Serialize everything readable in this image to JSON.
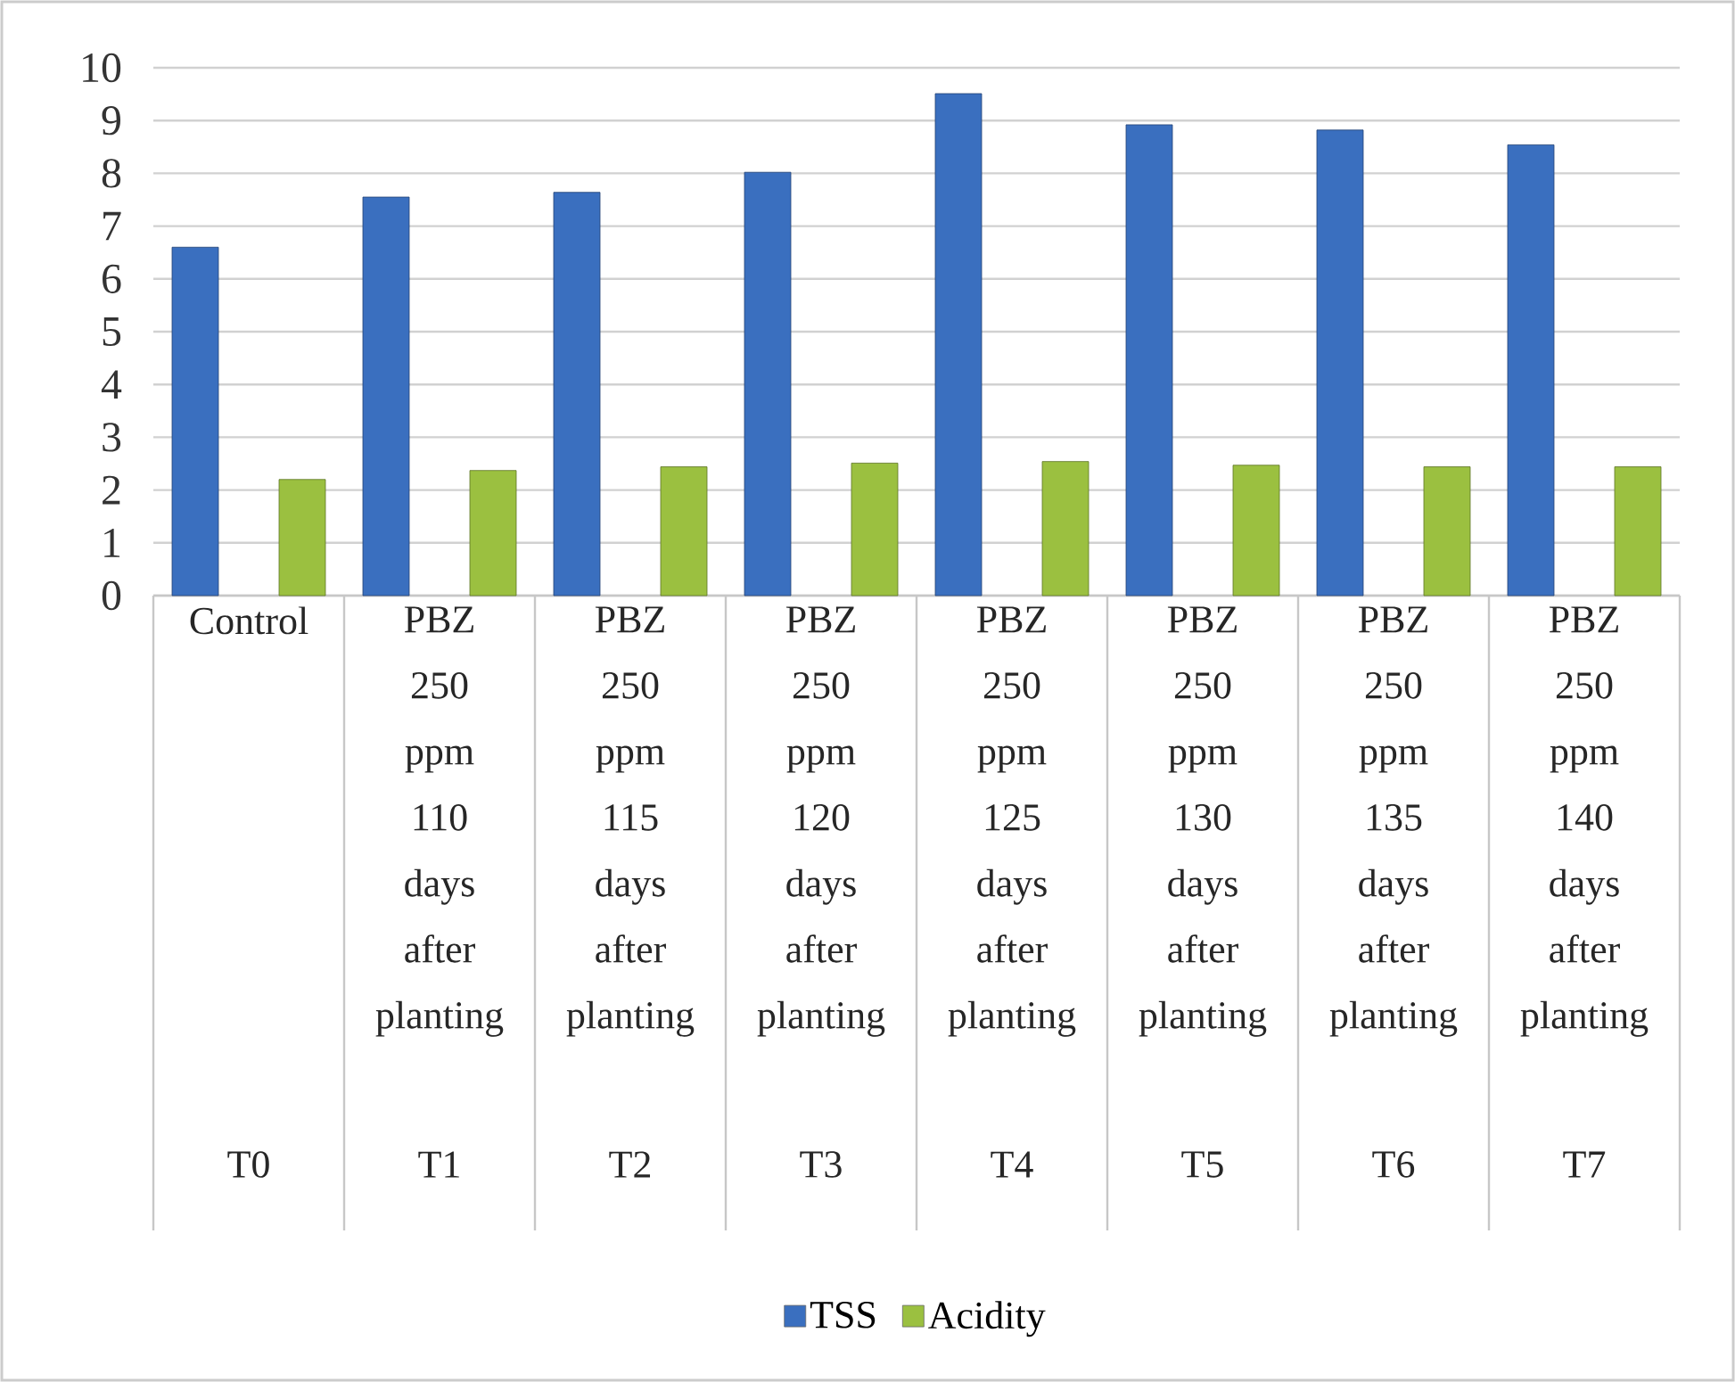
{
  "chart_data": {
    "type": "bar",
    "categories": [
      "Control",
      "PBZ 250 ppm 110 days after planting",
      "PBZ 250 ppm 115 days after planting",
      "PBZ 250 ppm 120 days after planting",
      "PBZ 250 ppm 125 days after planting",
      "PBZ 250 ppm 130 days after planting",
      "PBZ 250 ppm 135 days after planting",
      "PBZ 250 ppm 140 days after planting"
    ],
    "annotations": [
      "T0",
      "T1",
      "T2",
      "T3",
      "T4",
      "T5",
      "T6",
      "T7"
    ],
    "series": [
      {
        "name": "TSS",
        "color": "#3a6fbf",
        "values": [
          6.6,
          7.55,
          7.64,
          8.02,
          9.51,
          8.92,
          8.82,
          8.54
        ]
      },
      {
        "name": "Acidity",
        "color": "#9bc040",
        "values": [
          2.2,
          2.37,
          2.44,
          2.51,
          2.54,
          2.47,
          2.44,
          2.44
        ]
      }
    ],
    "ylim": [
      0,
      10
    ],
    "yticks": [
      0,
      1,
      2,
      3,
      4,
      5,
      6,
      7,
      8,
      9,
      10
    ],
    "grid": "y",
    "legend": "bottom"
  }
}
